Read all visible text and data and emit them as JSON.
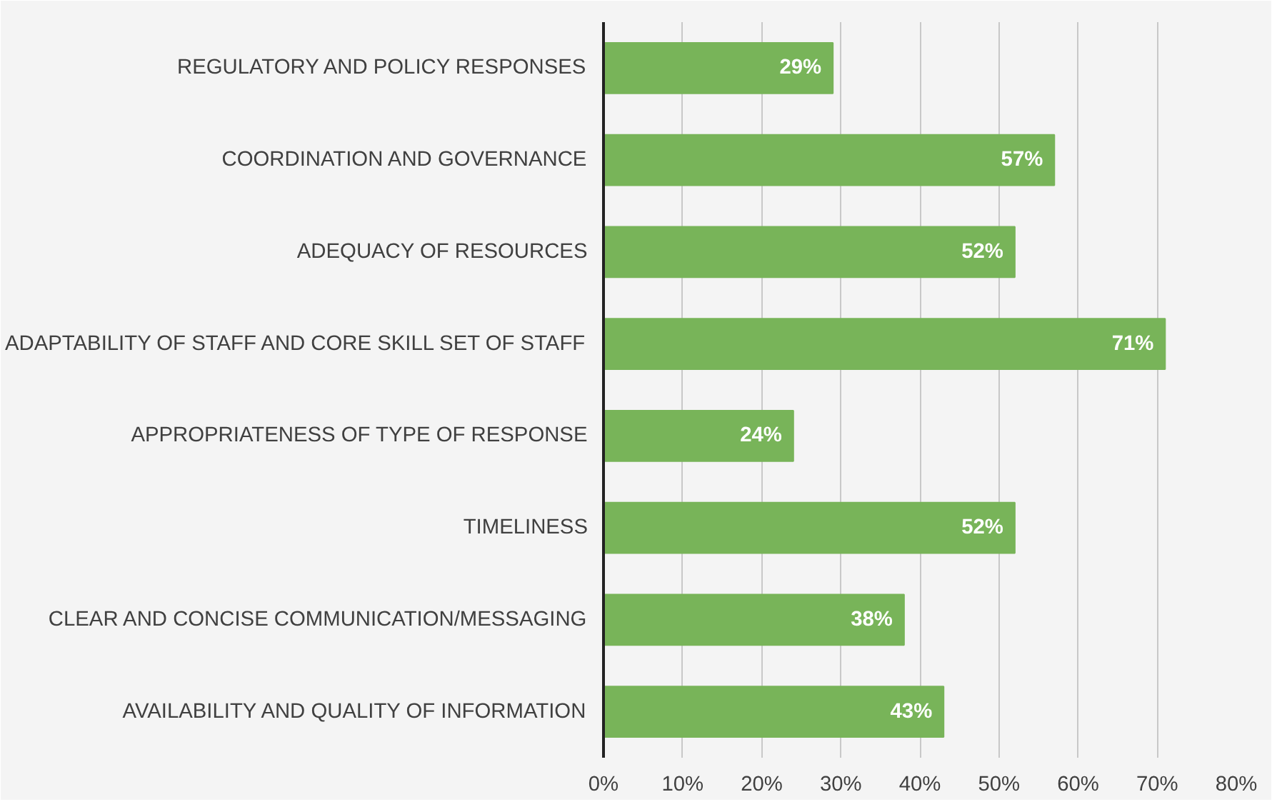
{
  "chart_data": {
    "type": "bar",
    "orientation": "horizontal",
    "categories": [
      "REGULATORY AND POLICY RESPONSES",
      "COORDINATION AND GOVERNANCE",
      "ADEQUACY OF RESOURCES",
      "ADAPTABILITY OF STAFF AND CORE SKILL SET OF STAFF",
      "APPROPRIATENESS OF TYPE OF RESPONSE",
      "TIMELINESS",
      "CLEAR AND CONCISE COMMUNICATION/MESSAGING",
      "AVAILABILITY AND QUALITY OF INFORMATION"
    ],
    "values": [
      29,
      57,
      52,
      71,
      24,
      52,
      38,
      43
    ],
    "value_labels": [
      "29%",
      "57%",
      "52%",
      "71%",
      "24%",
      "52%",
      "38%",
      "43%"
    ],
    "color": "#78b459",
    "xlim": [
      0,
      80
    ],
    "xticks": [
      {
        "value": 0,
        "label": "0%"
      },
      {
        "value": 10,
        "label": "10%"
      },
      {
        "value": 20,
        "label": "20%"
      },
      {
        "value": 30,
        "label": "30%"
      },
      {
        "value": 40,
        "label": "40%"
      },
      {
        "value": 50,
        "label": "50%"
      },
      {
        "value": 60,
        "label": "60%"
      },
      {
        "value": 70,
        "label": "70%"
      },
      {
        "value": 80,
        "label": "80%"
      }
    ],
    "grid": "x"
  }
}
